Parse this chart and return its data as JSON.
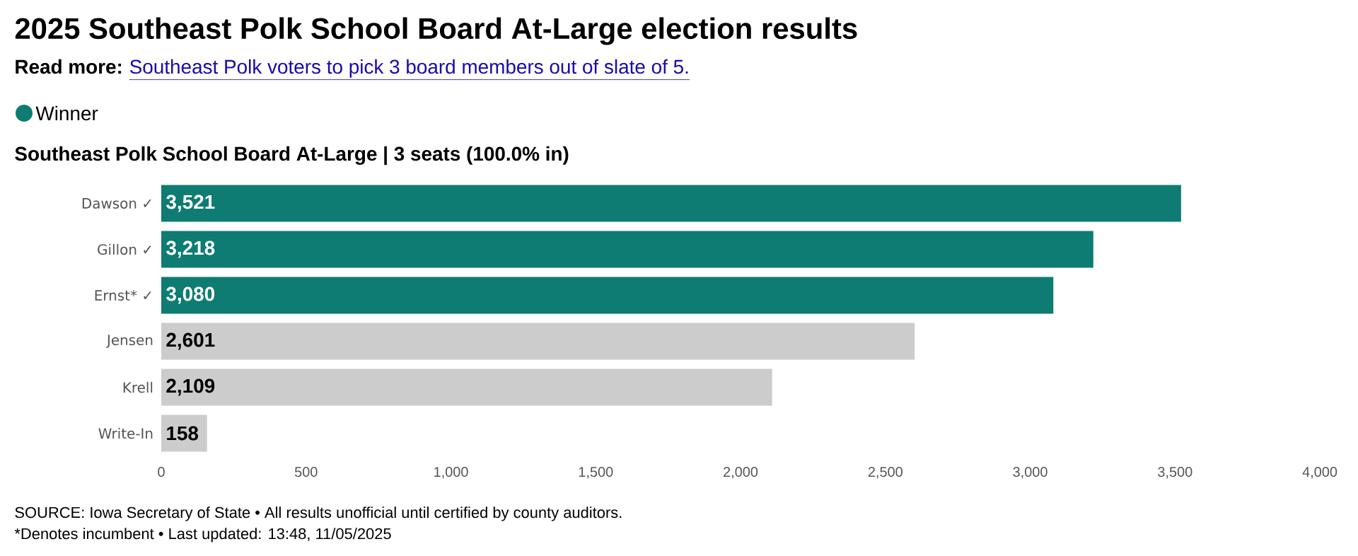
{
  "chart_data": {
    "type": "bar",
    "orientation": "horizontal",
    "title": "2025 Southeast Polk School Board At-Large election results",
    "subtitle": "Southeast Polk School Board At-Large | 3 seats (100.0% in)",
    "categories": [
      "Dawson ✓",
      "Gillon ✓",
      "Ernst* ✓",
      "Jensen",
      "Krell",
      "Write-In"
    ],
    "series": [
      {
        "name": "Winner",
        "color": "#0e7c72",
        "values": [
          3521,
          3218,
          3080,
          null,
          null,
          null
        ],
        "value_labels": [
          "3,521",
          "3,218",
          "3,080",
          null,
          null,
          null
        ]
      },
      {
        "color": "#cccccc",
        "values": [
          null,
          null,
          null,
          2601,
          2109,
          158
        ],
        "value_labels": [
          null,
          null,
          null,
          "2,601",
          "2,109",
          "158"
        ]
      }
    ],
    "xlim": [
      0,
      4000
    ],
    "xticks": [
      0,
      500,
      {
        "value": 1000,
        "label": "1,000"
      },
      {
        "value": 1500,
        "label": "1,500"
      },
      {
        "value": 2000,
        "label": "2,000"
      },
      {
        "value": 2500,
        "label": "2,500"
      },
      {
        "value": 3000,
        "label": "3,000"
      },
      {
        "value": 3500,
        "label": "3,500"
      },
      {
        "value": 4000,
        "label": "4,000"
      }
    ],
    "legend": "top left",
    "annotations": [
      "Read more:",
      "Southeast Polk voters to pick 3 board members out of slate of 5.",
      "SOURCE: Iowa Secretary of State • All results unofficial until certified by county auditors.",
      "*Denotes incumbent • Last updated: 13:48, 11/05/2025"
    ]
  }
}
